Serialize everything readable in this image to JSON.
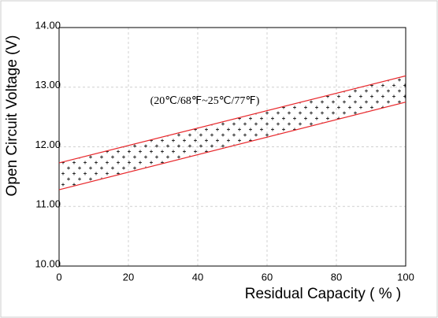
{
  "chart_data": {
    "type": "line",
    "annotation": "(20℃/68℉~25℃/77℉)",
    "x_label": "Residual Capacity ( % )",
    "y_label": "Open Circuit Voltage (V)",
    "x": [
      0,
      100
    ],
    "series": [
      {
        "color": "#e8262a",
        "values": [
          11.73,
          13.19
        ]
      },
      {
        "color": "#e8262a",
        "values": [
          11.28,
          12.75
        ]
      }
    ],
    "xlim": [
      0,
      100
    ],
    "xticks": [
      0,
      20,
      40,
      60,
      80,
      100
    ],
    "ylim": [
      10,
      14
    ],
    "yticks": [
      {
        "value": 10,
        "label": "10.00"
      },
      {
        "value": 11,
        "label": "11.00"
      },
      {
        "value": 12,
        "label": "12.00"
      },
      {
        "value": 13,
        "label": "13.00"
      },
      {
        "value": 14,
        "label": "14.00"
      }
    ],
    "grid": true
  }
}
